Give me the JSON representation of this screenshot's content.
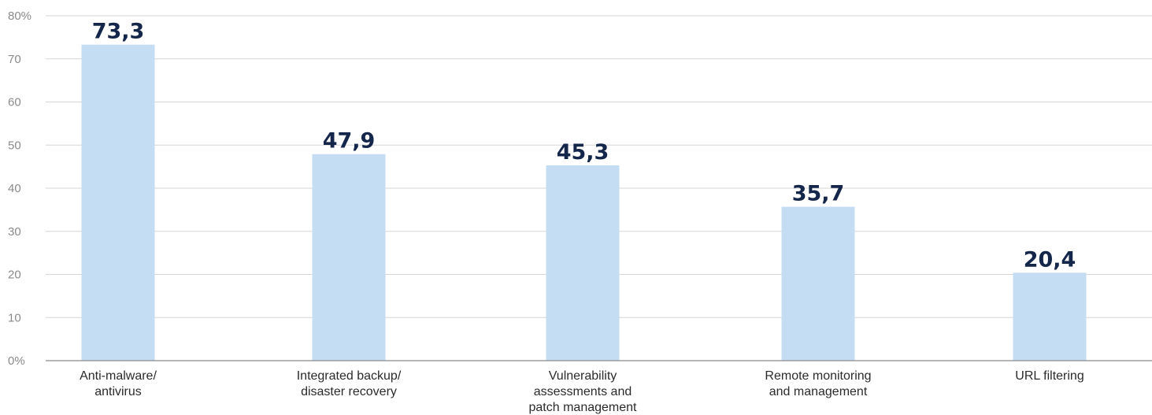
{
  "chart_data": {
    "type": "bar",
    "title": "",
    "xlabel": "",
    "ylabel": "",
    "categories": [
      [
        "Anti-malware/",
        "antivirus"
      ],
      [
        "Integrated backup/",
        "disaster recovery"
      ],
      [
        "Vulnerability",
        "assessments and",
        "patch management"
      ],
      [
        "Remote monitoring",
        "and management"
      ],
      [
        "URL filtering"
      ]
    ],
    "values": [
      73.3,
      47.9,
      45.3,
      35.7,
      20.4
    ],
    "value_labels": [
      "73,3",
      "47,9",
      "45,3",
      "35,7",
      "20,4"
    ],
    "ylim": [
      0,
      80
    ],
    "yticks": [
      0,
      10,
      20,
      30,
      40,
      50,
      60,
      70,
      80
    ],
    "ytick_labels": [
      "0%",
      "10",
      "20",
      "30",
      "40",
      "50",
      "60",
      "70",
      "80%"
    ],
    "grid": true,
    "legend": "none",
    "colors": {
      "bar": "#c5ddf2",
      "data_label": "#14264a",
      "grid": "#d6d6d6",
      "axis": "#8a8a8a",
      "tick_label": "#8a8a8a",
      "category_label": "#2b2b2b"
    }
  }
}
